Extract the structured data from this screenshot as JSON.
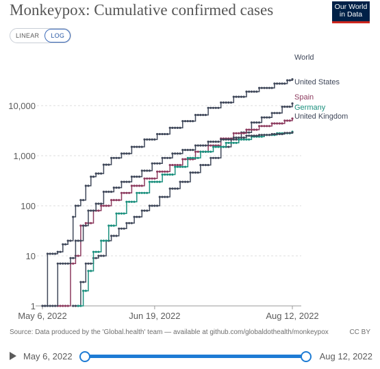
{
  "title": "Monkeypox: Cumulative confirmed cases",
  "logo": {
    "line1": "Our World",
    "line2": "in Data"
  },
  "scale_toggle": {
    "linear_label": "LINEAR",
    "log_label": "LOG",
    "selected": "LOG"
  },
  "source": "Source: Data produced by the 'Global.health' team — available at github.com/globaldothealth/monkeypox",
  "license": "CC BY",
  "timeline": {
    "start_label": "May 6, 2022",
    "end_label": "Aug 12, 2022"
  },
  "colors": {
    "World": "#3f4759",
    "United States": "#3f4759",
    "Spain": "#8c3a5e",
    "Germany": "#1a8f7d",
    "United Kingdom": "#3f4759"
  },
  "chart_data": {
    "type": "line",
    "title": "Monkeypox: Cumulative confirmed cases",
    "xlabel": "",
    "ylabel": "",
    "yscale": "log",
    "ylim": [
      1,
      40000
    ],
    "xlim": [
      "2022-05-06",
      "2022-08-12"
    ],
    "x_ticks": [
      "May 6, 2022",
      "Jun 19, 2022",
      "Aug 12, 2022"
    ],
    "y_ticks": [
      "1",
      "10",
      "100",
      "1,000",
      "10,000"
    ],
    "grid": true,
    "legend": "right-end labels",
    "series": [
      {
        "name": "World",
        "points": [
          [
            "2022-05-06",
            1
          ],
          [
            "2022-05-07",
            1
          ],
          [
            "2022-05-08",
            11
          ],
          [
            "2022-05-10",
            11
          ],
          [
            "2022-05-12",
            12
          ],
          [
            "2022-05-14",
            17
          ],
          [
            "2022-05-16",
            20
          ],
          [
            "2022-05-18",
            60
          ],
          [
            "2022-05-19",
            100
          ],
          [
            "2022-05-21",
            130
          ],
          [
            "2022-05-23",
            250
          ],
          [
            "2022-05-25",
            380
          ],
          [
            "2022-05-27",
            440
          ],
          [
            "2022-05-30",
            660
          ],
          [
            "2022-06-02",
            900
          ],
          [
            "2022-06-06",
            1100
          ],
          [
            "2022-06-10",
            1500
          ],
          [
            "2022-06-15",
            2100
          ],
          [
            "2022-06-20",
            2700
          ],
          [
            "2022-06-25",
            3600
          ],
          [
            "2022-06-30",
            4900
          ],
          [
            "2022-07-05",
            6500
          ],
          [
            "2022-07-10",
            9000
          ],
          [
            "2022-07-15",
            11500
          ],
          [
            "2022-07-20",
            15000
          ],
          [
            "2022-07-25",
            19000
          ],
          [
            "2022-07-30",
            22500
          ],
          [
            "2022-08-05",
            27500
          ],
          [
            "2022-08-10",
            32000
          ],
          [
            "2022-08-12",
            33500
          ]
        ]
      },
      {
        "name": "United States",
        "points": [
          [
            "2022-05-18",
            1
          ],
          [
            "2022-05-19",
            1
          ],
          [
            "2022-05-21",
            3
          ],
          [
            "2022-05-23",
            7
          ],
          [
            "2022-05-26",
            9
          ],
          [
            "2022-05-28",
            10
          ],
          [
            "2022-05-31",
            20
          ],
          [
            "2022-06-02",
            25
          ],
          [
            "2022-06-05",
            35
          ],
          [
            "2022-06-08",
            45
          ],
          [
            "2022-06-11",
            60
          ],
          [
            "2022-06-14",
            80
          ],
          [
            "2022-06-17",
            100
          ],
          [
            "2022-06-21",
            150
          ],
          [
            "2022-06-25",
            220
          ],
          [
            "2022-06-29",
            300
          ],
          [
            "2022-07-03",
            460
          ],
          [
            "2022-07-07",
            650
          ],
          [
            "2022-07-11",
            900
          ],
          [
            "2022-07-15",
            1500
          ],
          [
            "2022-07-19",
            2100
          ],
          [
            "2022-07-23",
            2900
          ],
          [
            "2022-07-27",
            4600
          ],
          [
            "2022-07-31",
            5800
          ],
          [
            "2022-08-04",
            7100
          ],
          [
            "2022-08-08",
            9500
          ],
          [
            "2022-08-12",
            11000
          ]
        ]
      },
      {
        "name": "Spain",
        "points": [
          [
            "2022-05-12",
            1
          ],
          [
            "2022-05-15",
            1
          ],
          [
            "2022-05-17",
            7
          ],
          [
            "2022-05-19",
            10
          ],
          [
            "2022-05-21",
            40
          ],
          [
            "2022-05-23",
            45
          ],
          [
            "2022-05-26",
            80
          ],
          [
            "2022-05-29",
            100
          ],
          [
            "2022-06-02",
            130
          ],
          [
            "2022-06-06",
            180
          ],
          [
            "2022-06-10",
            250
          ],
          [
            "2022-06-15",
            350
          ],
          [
            "2022-06-20",
            480
          ],
          [
            "2022-06-25",
            650
          ],
          [
            "2022-06-30",
            850
          ],
          [
            "2022-07-05",
            1200
          ],
          [
            "2022-07-10",
            1600
          ],
          [
            "2022-07-15",
            2200
          ],
          [
            "2022-07-20",
            2800
          ],
          [
            "2022-07-25",
            3300
          ],
          [
            "2022-07-30",
            3900
          ],
          [
            "2022-08-04",
            4400
          ],
          [
            "2022-08-09",
            5000
          ],
          [
            "2022-08-12",
            5500
          ]
        ]
      },
      {
        "name": "Germany",
        "points": [
          [
            "2022-05-20",
            1
          ],
          [
            "2022-05-22",
            2
          ],
          [
            "2022-05-24",
            5
          ],
          [
            "2022-05-26",
            12
          ],
          [
            "2022-05-29",
            20
          ],
          [
            "2022-06-01",
            40
          ],
          [
            "2022-06-04",
            70
          ],
          [
            "2022-06-08",
            120
          ],
          [
            "2022-06-12",
            180
          ],
          [
            "2022-06-17",
            300
          ],
          [
            "2022-06-22",
            420
          ],
          [
            "2022-06-27",
            600
          ],
          [
            "2022-07-02",
            900
          ],
          [
            "2022-07-07",
            1200
          ],
          [
            "2022-07-12",
            1500
          ],
          [
            "2022-07-17",
            1800
          ],
          [
            "2022-07-22",
            2100
          ],
          [
            "2022-07-27",
            2400
          ],
          [
            "2022-08-01",
            2600
          ],
          [
            "2022-08-06",
            2800
          ],
          [
            "2022-08-12",
            3000
          ]
        ]
      },
      {
        "name": "United Kingdom",
        "points": [
          [
            "2022-05-06",
            1
          ],
          [
            "2022-05-09",
            1
          ],
          [
            "2022-05-12",
            7
          ],
          [
            "2022-05-14",
            7
          ],
          [
            "2022-05-17",
            9
          ],
          [
            "2022-05-19",
            20
          ],
          [
            "2022-05-22",
            40
          ],
          [
            "2022-05-24",
            80
          ],
          [
            "2022-05-27",
            110
          ],
          [
            "2022-05-30",
            190
          ],
          [
            "2022-06-03",
            230
          ],
          [
            "2022-06-06",
            300
          ],
          [
            "2022-06-10",
            380
          ],
          [
            "2022-06-14",
            500
          ],
          [
            "2022-06-18",
            700
          ],
          [
            "2022-06-22",
            900
          ],
          [
            "2022-06-26",
            1100
          ],
          [
            "2022-06-30",
            1300
          ],
          [
            "2022-07-05",
            1600
          ],
          [
            "2022-07-10",
            1900
          ],
          [
            "2022-07-15",
            2100
          ],
          [
            "2022-07-20",
            2300
          ],
          [
            "2022-07-25",
            2500
          ],
          [
            "2022-07-30",
            2600
          ],
          [
            "2022-08-04",
            2700
          ],
          [
            "2022-08-09",
            2850
          ],
          [
            "2022-08-12",
            2900
          ]
        ]
      }
    ]
  }
}
